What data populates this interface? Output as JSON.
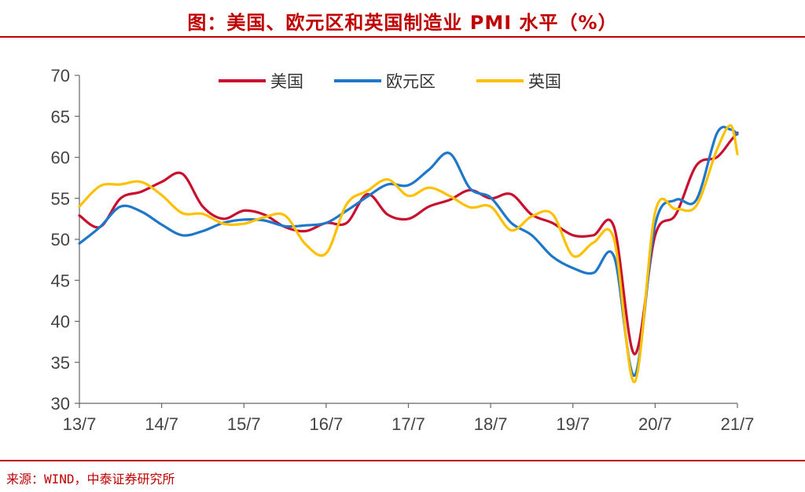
{
  "header": {
    "title": "图：美国、欧元区和英国制造业 PMI 水平（%）"
  },
  "footer": {
    "source": "来源：WIND，中泰证券研究所"
  },
  "colors": {
    "title": "#c00000",
    "us": "#c8102e",
    "euro": "#1f77c9",
    "uk": "#ffc000",
    "axis": "#666666"
  },
  "chart_data": {
    "type": "line",
    "title": "图：美国、欧元区和英国制造业 PMI 水平（%）",
    "xlabel": "",
    "ylabel": "",
    "ylim": [
      30,
      70
    ],
    "yticks": [
      "30",
      "35",
      "40",
      "45",
      "50",
      "55",
      "60",
      "65",
      "70"
    ],
    "xticks": [
      "13/7",
      "14/7",
      "15/7",
      "16/7",
      "17/7",
      "18/7",
      "19/7",
      "20/7",
      "21/7"
    ],
    "grid": false,
    "legend_position": "top",
    "series": [
      {
        "name": "美国",
        "color": "#c8102e",
        "points": [
          [
            "2013-07",
            52.9
          ],
          [
            "2013-10",
            51.5
          ],
          [
            "2014-01",
            55.0
          ],
          [
            "2014-04",
            55.8
          ],
          [
            "2014-07",
            57.0
          ],
          [
            "2014-10",
            58.0
          ],
          [
            "2015-01",
            54.0
          ],
          [
            "2015-04",
            52.5
          ],
          [
            "2015-07",
            53.5
          ],
          [
            "2015-10",
            53.0
          ],
          [
            "2016-01",
            51.5
          ],
          [
            "2016-04",
            51.0
          ],
          [
            "2016-07",
            52.0
          ],
          [
            "2016-10",
            52.0
          ],
          [
            "2017-01",
            55.5
          ],
          [
            "2017-04",
            53.0
          ],
          [
            "2017-07",
            52.5
          ],
          [
            "2017-10",
            54.0
          ],
          [
            "2018-01",
            54.8
          ],
          [
            "2018-04",
            56.0
          ],
          [
            "2018-07",
            55.0
          ],
          [
            "2018-10",
            55.5
          ],
          [
            "2019-01",
            53.0
          ],
          [
            "2019-04",
            52.0
          ],
          [
            "2019-07",
            50.5
          ],
          [
            "2019-10",
            50.5
          ],
          [
            "2020-01",
            51.5
          ],
          [
            "2020-04",
            36.0
          ],
          [
            "2020-07",
            50.5
          ],
          [
            "2020-10",
            53.0
          ],
          [
            "2021-01",
            59.0
          ],
          [
            "2021-04",
            60.0
          ],
          [
            "2021-06",
            62.0
          ],
          [
            "2021-07",
            63.0
          ]
        ]
      },
      {
        "name": "欧元区",
        "color": "#1f77c9",
        "points": [
          [
            "2013-07",
            49.5
          ],
          [
            "2013-10",
            51.5
          ],
          [
            "2014-01",
            54.0
          ],
          [
            "2014-04",
            53.4
          ],
          [
            "2014-07",
            51.8
          ],
          [
            "2014-10",
            50.5
          ],
          [
            "2015-01",
            51.0
          ],
          [
            "2015-04",
            52.0
          ],
          [
            "2015-07",
            52.4
          ],
          [
            "2015-10",
            52.3
          ],
          [
            "2016-01",
            51.6
          ],
          [
            "2016-04",
            51.7
          ],
          [
            "2016-07",
            52.0
          ],
          [
            "2016-10",
            53.5
          ],
          [
            "2017-01",
            55.2
          ],
          [
            "2017-04",
            56.7
          ],
          [
            "2017-07",
            56.6
          ],
          [
            "2017-10",
            58.5
          ],
          [
            "2018-01",
            60.5
          ],
          [
            "2018-04",
            56.2
          ],
          [
            "2018-07",
            55.1
          ],
          [
            "2018-10",
            52.0
          ],
          [
            "2019-01",
            50.5
          ],
          [
            "2019-04",
            47.9
          ],
          [
            "2019-07",
            46.5
          ],
          [
            "2019-10",
            45.9
          ],
          [
            "2020-01",
            47.9
          ],
          [
            "2020-04",
            33.4
          ],
          [
            "2020-07",
            51.8
          ],
          [
            "2020-10",
            54.8
          ],
          [
            "2021-01",
            54.8
          ],
          [
            "2021-04",
            62.9
          ],
          [
            "2021-06",
            63.4
          ],
          [
            "2021-07",
            62.8
          ]
        ]
      },
      {
        "name": "英国",
        "color": "#ffc000",
        "points": [
          [
            "2013-07",
            54.0
          ],
          [
            "2013-10",
            56.5
          ],
          [
            "2014-01",
            56.7
          ],
          [
            "2014-04",
            57.0
          ],
          [
            "2014-07",
            55.4
          ],
          [
            "2014-10",
            53.2
          ],
          [
            "2015-01",
            53.1
          ],
          [
            "2015-04",
            51.9
          ],
          [
            "2015-07",
            51.9
          ],
          [
            "2015-10",
            52.7
          ],
          [
            "2016-01",
            52.9
          ],
          [
            "2016-04",
            49.4
          ],
          [
            "2016-07",
            48.3
          ],
          [
            "2016-10",
            54.3
          ],
          [
            "2017-01",
            55.9
          ],
          [
            "2017-04",
            57.3
          ],
          [
            "2017-07",
            55.3
          ],
          [
            "2017-10",
            56.3
          ],
          [
            "2018-01",
            55.3
          ],
          [
            "2018-04",
            53.9
          ],
          [
            "2018-07",
            54.0
          ],
          [
            "2018-10",
            51.1
          ],
          [
            "2019-01",
            52.8
          ],
          [
            "2019-04",
            53.1
          ],
          [
            "2019-07",
            48.0
          ],
          [
            "2019-10",
            49.6
          ],
          [
            "2020-01",
            50.0
          ],
          [
            "2020-04",
            32.6
          ],
          [
            "2020-07",
            53.3
          ],
          [
            "2020-10",
            53.7
          ],
          [
            "2021-01",
            54.1
          ],
          [
            "2021-04",
            60.9
          ],
          [
            "2021-06",
            63.9
          ],
          [
            "2021-07",
            60.4
          ]
        ]
      }
    ]
  }
}
